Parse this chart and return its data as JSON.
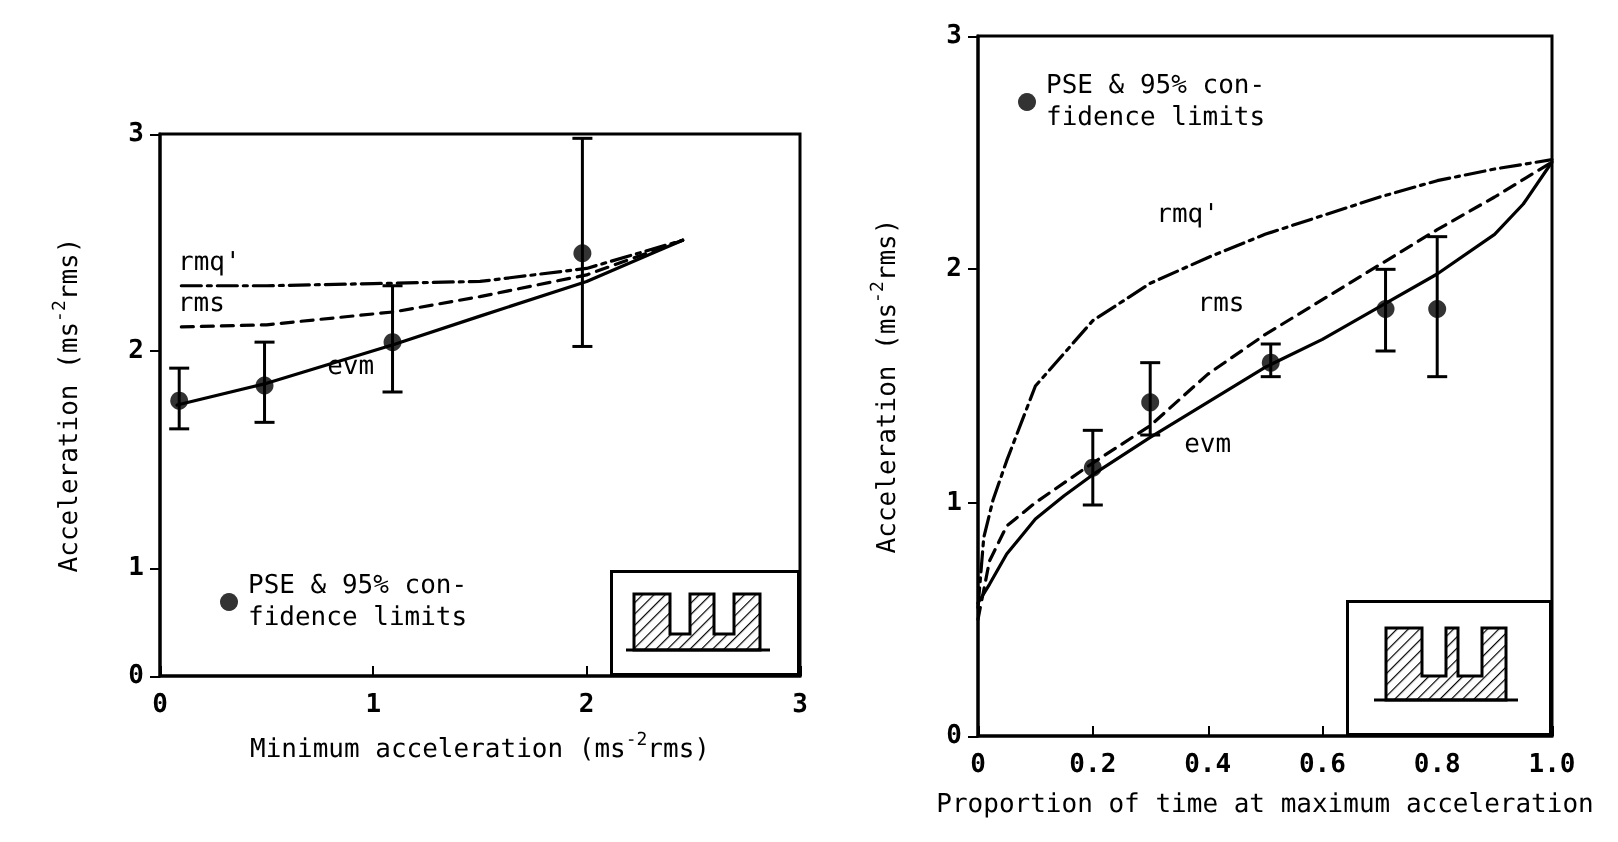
{
  "chart_data": [
    {
      "type": "line",
      "xlabel": "Minimum acceleration (ms$^{-2}$rms)",
      "ylabel": "Acceleration (ms$^{-2}$rms)",
      "xlim": [
        0,
        3
      ],
      "xticks": [
        0,
        1,
        2,
        3
      ],
      "ylim": [
        0.5,
        3
      ],
      "yticks": [
        {
          "value": 0.5,
          "label": "0"
        },
        1,
        2,
        3
      ],
      "grid": false,
      "legend": "bottom left",
      "series": [
        {
          "name": "rmq'",
          "color": "#000000",
          "line_style": "dashdot",
          "marker": "none",
          "x": [
            0.1,
            0.5,
            1.0,
            1.5,
            2.0,
            2.45
          ],
          "values": [
            2.3,
            2.3,
            2.31,
            2.32,
            2.38,
            2.51
          ]
        },
        {
          "name": "rms",
          "color": "#000000",
          "line_style": "dashed",
          "marker": "none",
          "x": [
            0.1,
            0.5,
            1.1,
            1.5,
            2.0,
            2.45
          ],
          "values": [
            2.11,
            2.12,
            2.18,
            2.25,
            2.35,
            2.51
          ]
        },
        {
          "name": "evm",
          "color": "#000000",
          "line_style": "solid",
          "marker": "none",
          "x": [
            0.08,
            0.5,
            1.1,
            1.5,
            2.0,
            2.45
          ],
          "values": [
            1.75,
            1.85,
            2.03,
            2.16,
            2.32,
            2.51
          ]
        },
        {
          "name": "PSE & 95% con- fidence limits",
          "type": "scatter",
          "color": "#000000",
          "marker": "circle",
          "x": [
            0.09,
            0.49,
            1.09,
            1.98
          ],
          "values": [
            1.77,
            1.84,
            2.04,
            2.45
          ],
          "errors": [
            [
              1.64,
              1.92
            ],
            [
              1.67,
              2.04
            ],
            [
              1.81,
              2.3
            ],
            [
              2.02,
              2.98
            ]
          ]
        }
      ]
    },
    {
      "type": "line",
      "xlabel": "Proportion of time at maximum acceleration",
      "ylabel": "Acceleration (ms$^{-2}$rms)",
      "xlim": [
        0,
        1
      ],
      "xticks": [
        0,
        0.2,
        0.4,
        0.6,
        0.8,
        {
          "value": 1,
          "label": "1.0"
        }
      ],
      "ylim": [
        0,
        3
      ],
      "yticks": [
        0,
        1,
        2,
        3
      ],
      "grid": false,
      "legend": "top left",
      "series": [
        {
          "name": "rmq'",
          "color": "#000000",
          "line_style": "dashdot",
          "marker": "none",
          "x": [
            0,
            0.01,
            0.026,
            0.05,
            0.1,
            0.2,
            0.3,
            0.4,
            0.5,
            0.6,
            0.7,
            0.8,
            0.9,
            1.0
          ],
          "values": [
            0.55,
            0.85,
            1.01,
            1.18,
            1.5,
            1.78,
            1.94,
            2.05,
            2.15,
            2.23,
            2.31,
            2.38,
            2.43,
            2.47
          ]
        },
        {
          "name": "rms",
          "color": "#000000",
          "line_style": "dashed",
          "marker": "none",
          "x": [
            0,
            0.02,
            0.05,
            0.1,
            0.2,
            0.3,
            0.4,
            0.5,
            0.6,
            0.7,
            0.8,
            0.9,
            1.0
          ],
          "values": [
            0.5,
            0.75,
            0.9,
            1.0,
            1.17,
            1.33,
            1.55,
            1.72,
            1.87,
            2.02,
            2.17,
            2.31,
            2.46
          ]
        },
        {
          "name": "evm",
          "color": "#000000",
          "line_style": "solid",
          "marker": "none",
          "x": [
            0,
            0.02,
            0.05,
            0.1,
            0.15,
            0.2,
            0.3,
            0.4,
            0.5,
            0.6,
            0.7,
            0.8,
            0.9,
            0.95,
            1.0
          ],
          "values": [
            0.57,
            0.65,
            0.78,
            0.93,
            1.03,
            1.12,
            1.28,
            1.43,
            1.58,
            1.7,
            1.84,
            1.98,
            2.15,
            2.28,
            2.46
          ]
        },
        {
          "name": "PSE & 95% con- fidence limits",
          "type": "scatter",
          "color": "#000000",
          "marker": "circle",
          "x": [
            0.2,
            0.3,
            0.51,
            0.71,
            0.8
          ],
          "values": [
            1.15,
            1.43,
            1.6,
            1.83,
            1.83
          ],
          "errors": [
            [
              0.99,
              1.31
            ],
            [
              1.29,
              1.6
            ],
            [
              1.54,
              1.68
            ],
            [
              1.65,
              2.0
            ],
            [
              1.54,
              2.14
            ]
          ]
        }
      ]
    }
  ]
}
